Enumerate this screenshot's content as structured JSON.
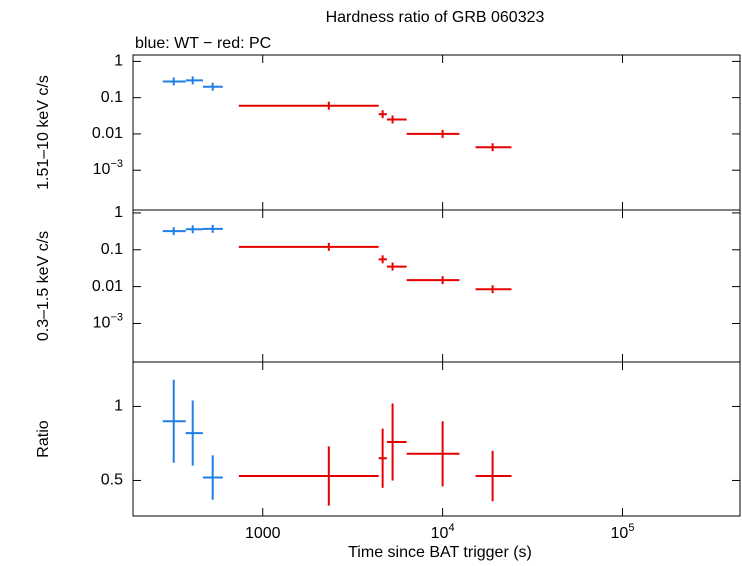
{
  "chart_data": [
    {
      "type": "errorbar",
      "title": "Hardness ratio of GRB 060323",
      "subtitle": "blue: WT − red: PC",
      "ylabel": "1.51–10 keV c/s",
      "log_y": true,
      "ylim": [
        8e-05,
        1.5
      ],
      "yticks": [
        1,
        0.1,
        0.01,
        {
          "value": 0.001,
          "label": "10",
          "exponent": "−3"
        }
      ],
      "series": [
        {
          "color": "#1f7fe6",
          "x": [
            320,
            408,
            527
          ],
          "x_lo": [
            278,
            373,
            465
          ],
          "x_hi": [
            373,
            465,
            600
          ],
          "values": [
            0.28,
            0.3,
            0.2
          ]
        },
        {
          "color": "#e60000",
          "x": [
            2330,
            4640,
            5270,
            10000,
            18960
          ],
          "x_lo": [
            736,
            4410,
            4900,
            6310,
            15250
          ],
          "x_hi": [
            4410,
            4900,
            6310,
            12400,
            24150
          ],
          "values": [
            0.06,
            0.035,
            0.025,
            0.01,
            0.0043
          ]
        }
      ]
    },
    {
      "type": "errorbar",
      "ylabel": "0.3–1.5 keV c/s",
      "log_y": true,
      "ylim": [
        9e-05,
        1.2
      ],
      "yticks": [
        1,
        0.1,
        0.01,
        {
          "value": 0.001,
          "label": "10",
          "exponent": "−3"
        }
      ],
      "series": [
        {
          "color": "#1f7fe6",
          "x": [
            320,
            408,
            527
          ],
          "x_lo": [
            278,
            373,
            465
          ],
          "x_hi": [
            373,
            465,
            600
          ],
          "values": [
            0.32,
            0.36,
            0.37
          ]
        },
        {
          "color": "#e60000",
          "x": [
            2330,
            4640,
            5270,
            10000,
            18960
          ],
          "x_lo": [
            736,
            4410,
            4900,
            6310,
            15250
          ],
          "x_hi": [
            4410,
            4900,
            6310,
            12400,
            24150
          ],
          "values": [
            0.12,
            0.055,
            0.035,
            0.015,
            0.0085
          ]
        }
      ]
    },
    {
      "type": "errorbar",
      "ylabel": "Ratio",
      "xlabel": "Time since BAT trigger (s)",
      "log_y": false,
      "ylim": [
        0.26,
        1.3
      ],
      "yticks": [
        1,
        0.5
      ],
      "log_x": true,
      "xlim": [
        190,
        450000
      ],
      "xticks": [
        1000,
        {
          "value": 10000,
          "label": "10",
          "exponent": "4"
        },
        {
          "value": 100000,
          "label": "10",
          "exponent": "5"
        }
      ],
      "series": [
        {
          "color": "#1f7fe6",
          "x": [
            320,
            408,
            527
          ],
          "x_lo": [
            278,
            373,
            465
          ],
          "x_hi": [
            373,
            465,
            600
          ],
          "values": [
            0.9,
            0.82,
            0.52
          ],
          "yerr": [
            0.28,
            0.22,
            0.15
          ]
        },
        {
          "color": "#e60000",
          "x": [
            2330,
            4640,
            5270,
            10000,
            18960
          ],
          "x_lo": [
            736,
            4410,
            4900,
            6310,
            15250
          ],
          "x_hi": [
            4410,
            4900,
            6310,
            12400,
            24150
          ],
          "values": [
            0.53,
            0.65,
            0.76,
            0.68,
            0.53
          ],
          "yerr": [
            0.2,
            0.2,
            0.26,
            0.22,
            0.17
          ]
        }
      ]
    }
  ]
}
